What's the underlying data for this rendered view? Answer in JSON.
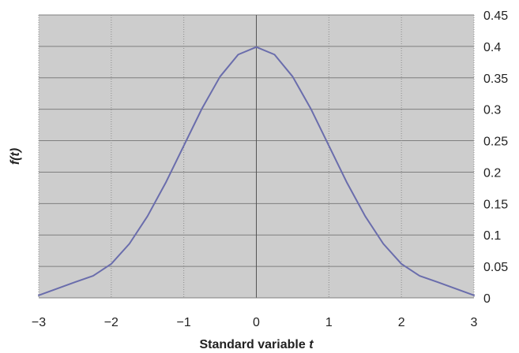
{
  "chart_data": {
    "type": "line",
    "title": "",
    "xlabel": "Standard variable",
    "xlabel_var": "t",
    "ylabel": "f(t)",
    "xlim": [
      -3,
      3
    ],
    "ylim": [
      0,
      0.45
    ],
    "x_ticks": [
      -3,
      -2,
      -1,
      0,
      1,
      2,
      3
    ],
    "x_tick_labels": [
      "−3",
      "−2",
      "−1",
      "0",
      "1",
      "2",
      "3"
    ],
    "y_ticks": [
      0,
      0.05,
      0.1,
      0.15,
      0.2,
      0.25,
      0.3,
      0.35,
      0.4,
      0.45
    ],
    "y_tick_labels": [
      "0",
      "0.05",
      "0.1",
      "0.15",
      "0.2",
      "0.25",
      "0.3",
      "0.35",
      "0.4",
      "0.45"
    ],
    "y_axis_side": "right",
    "grid": true,
    "legend": "none",
    "series": [
      {
        "x": [
          -3.0,
          -2.5,
          -2.25,
          -2.0,
          -1.75,
          -1.5,
          -1.25,
          -1.0,
          -0.75,
          -0.5,
          -0.25,
          0.0,
          0.25,
          0.5,
          0.75,
          1.0,
          1.25,
          1.5,
          1.75,
          2.0,
          2.25,
          2.5,
          3.0
        ],
        "y": [
          0.004,
          0.025,
          0.035,
          0.054,
          0.086,
          0.13,
          0.183,
          0.242,
          0.301,
          0.352,
          0.387,
          0.399,
          0.387,
          0.352,
          0.301,
          0.242,
          0.183,
          0.13,
          0.086,
          0.054,
          0.035,
          0.025,
          0.004
        ]
      }
    ]
  },
  "colors": {
    "plot_background": "#cdcdcd",
    "grid_major": "#7f7f7f",
    "grid_vertical": "#8c8c8c",
    "center_axis": "#555555",
    "curve": "#6a6dac",
    "text": "#222222"
  }
}
